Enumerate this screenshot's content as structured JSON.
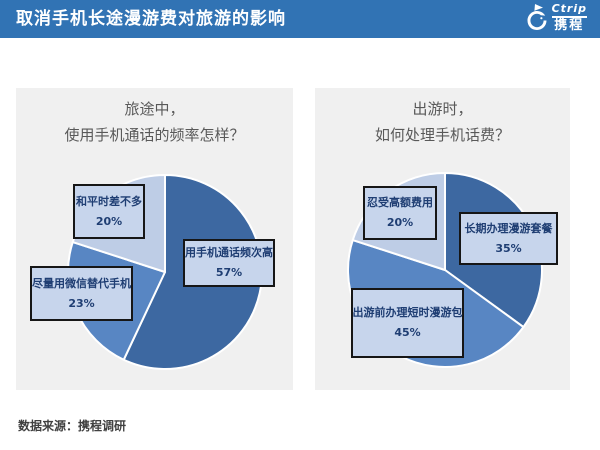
{
  "header": {
    "title": "取消手机长途漫游费对旅游的影响",
    "logo": {
      "brand": "Ctrip",
      "brand_cn": "携程",
      "icon": "dolphin-icon"
    }
  },
  "chart_data": [
    {
      "type": "pie",
      "title": "旅途中，使用手机通话的频率怎样？",
      "title_lines": [
        "旅途中，",
        "使用手机通话的频率怎样？"
      ],
      "start_angle_deg": 0,
      "direction": "clockwise",
      "legend": "none",
      "slices": [
        {
          "label": "用手机通话频次高",
          "value": 57,
          "pct_label": "57%",
          "color": "#3D68A1"
        },
        {
          "label": "尽量用微信替代手机",
          "value": 23,
          "pct_label": "23%",
          "color": "#5886C3"
        },
        {
          "label": "和平时差不多",
          "value": 20,
          "pct_label": "20%",
          "color": "#BECDE6"
        }
      ]
    },
    {
      "type": "pie",
      "title": "出游时，如何处理手机话费？",
      "title_lines": [
        "出游时，",
        "如何处理手机话费？"
      ],
      "start_angle_deg": 0,
      "direction": "clockwise",
      "legend": "none",
      "slices": [
        {
          "label": "长期办理漫游套餐",
          "value": 35,
          "pct_label": "35%",
          "color": "#3D68A1"
        },
        {
          "label": "出游前办理短时漫游包",
          "value": 45,
          "pct_label": "45%",
          "color": "#5886C3"
        },
        {
          "label": "忍受高额费用",
          "value": 20,
          "pct_label": "20%",
          "color": "#BECDE6"
        }
      ]
    }
  ],
  "footer": {
    "source": "数据来源：携程调研"
  },
  "colors": {
    "header_bg": "#3173B4",
    "panel_bg": "#F0F0F0",
    "slice_dark": "#3D68A1",
    "slice_medium": "#5886C3",
    "slice_light": "#BECDE6",
    "slice_divider": "#FFFFFF",
    "label_box_bg": "#C7D5EC",
    "label_box_border": "#161616",
    "label_box_text": "#1F3E73",
    "panel_title_text": "#595959",
    "footer_text": "#404040"
  }
}
